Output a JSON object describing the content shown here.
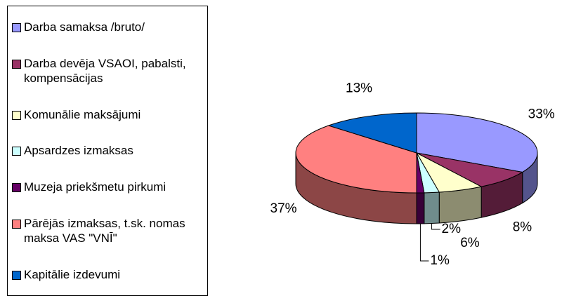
{
  "chart_data": {
    "type": "pie3d",
    "categories": [
      "Darba samaksa /bruto/",
      "Darba devēja VSAOI, pabalsti, kompensācijas",
      "Komunālie maksājumi",
      "Apsardzes izmaksas",
      "Muzeja priekšmetu pirkumi",
      "Pārējās izmaksas, t.sk. nomas maksa VAS \"VNĪ\"",
      "Kapitālie izdevumi"
    ],
    "values": [
      33,
      8,
      6,
      2,
      1,
      37,
      13
    ],
    "value_labels": [
      "33%",
      "8%",
      "6%",
      "2%",
      "1%",
      "37%",
      "13%"
    ],
    "colors": [
      "#9999ff",
      "#993366",
      "#ffffcc",
      "#ccffff",
      "#660066",
      "#ff8080",
      "#0066cc"
    ],
    "legend": "left"
  }
}
